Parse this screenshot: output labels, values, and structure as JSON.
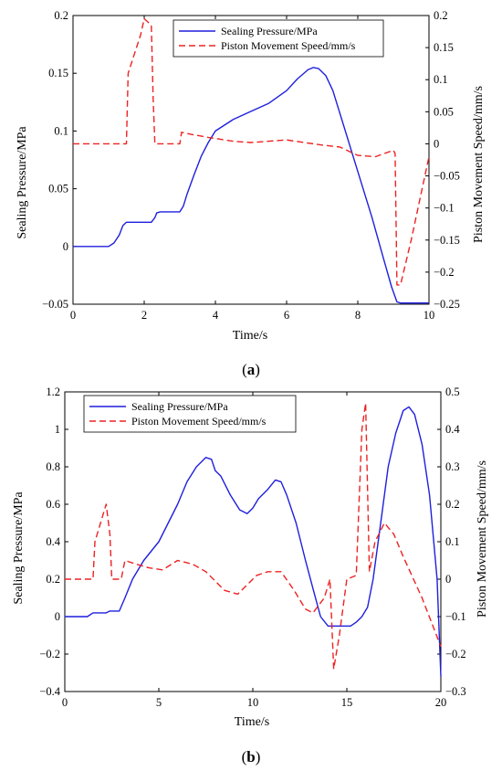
{
  "chart_data": [
    {
      "type": "line",
      "panel_label_letter": "a",
      "xlabel": "Time/s",
      "ylabel_left": "Sealing Pressure/MPa",
      "ylabel_right": "Piston Movement Speed/mm/s",
      "xlim": [
        0,
        10
      ],
      "ylim_left": [
        -0.05,
        0.2
      ],
      "ylim_right": [
        -0.25,
        0.2
      ],
      "xticks": [
        "0",
        "2",
        "4",
        "6",
        "8",
        "10"
      ],
      "yticks_left": [
        "-0.05",
        "0",
        "0.05",
        "0.1",
        "0.15",
        "0.2"
      ],
      "yticks_right": [
        "-0.25",
        "-0.2",
        "-0.15",
        "-0.1",
        "-0.05",
        "0",
        "0.05",
        "0.1",
        "0.15",
        "0.2"
      ],
      "grid": false,
      "legend_position": "top-center",
      "series": [
        {
          "name": "Sealing Pressure/MPa",
          "axis": "left",
          "color": "#1f1fdd",
          "style": "solid",
          "points": [
            [
              0,
              0
            ],
            [
              1.0,
              0
            ],
            [
              1.15,
              0.003
            ],
            [
              1.3,
              0.01
            ],
            [
              1.4,
              0.018
            ],
            [
              1.5,
              0.021
            ],
            [
              2.2,
              0.021
            ],
            [
              2.3,
              0.025
            ],
            [
              2.35,
              0.029
            ],
            [
              2.45,
              0.03
            ],
            [
              3.0,
              0.03
            ],
            [
              3.1,
              0.035
            ],
            [
              3.2,
              0.045
            ],
            [
              3.4,
              0.062
            ],
            [
              3.6,
              0.078
            ],
            [
              3.8,
              0.09
            ],
            [
              4.0,
              0.1
            ],
            [
              4.5,
              0.11
            ],
            [
              5.0,
              0.117
            ],
            [
              5.5,
              0.124
            ],
            [
              6.0,
              0.135
            ],
            [
              6.3,
              0.145
            ],
            [
              6.6,
              0.153
            ],
            [
              6.75,
              0.155
            ],
            [
              6.9,
              0.154
            ],
            [
              7.1,
              0.148
            ],
            [
              7.3,
              0.135
            ],
            [
              7.5,
              0.115
            ],
            [
              7.8,
              0.085
            ],
            [
              8.1,
              0.055
            ],
            [
              8.4,
              0.025
            ],
            [
              8.7,
              -0.008
            ],
            [
              8.95,
              -0.035
            ],
            [
              9.1,
              -0.048
            ],
            [
              9.2,
              -0.049
            ],
            [
              10,
              -0.049
            ]
          ]
        },
        {
          "name": "Piston Movement Speed/mm/s",
          "axis": "right",
          "color": "#ee2222",
          "style": "dashed",
          "points": [
            [
              0,
              0
            ],
            [
              1.5,
              0
            ],
            [
              1.55,
              0.11
            ],
            [
              1.9,
              0.17
            ],
            [
              2.0,
              0.195
            ],
            [
              2.2,
              0.185
            ],
            [
              2.25,
              0.07
            ],
            [
              2.3,
              0
            ],
            [
              3.0,
              0
            ],
            [
              3.05,
              0.018
            ],
            [
              3.3,
              0.015
            ],
            [
              3.8,
              0.01
            ],
            [
              4.5,
              0.004
            ],
            [
              5.0,
              0.002
            ],
            [
              5.5,
              0.004
            ],
            [
              6.0,
              0.006
            ],
            [
              6.5,
              0.002
            ],
            [
              7.0,
              -0.002
            ],
            [
              7.5,
              -0.005
            ],
            [
              8.0,
              -0.018
            ],
            [
              8.5,
              -0.02
            ],
            [
              9.0,
              -0.01
            ],
            [
              9.05,
              -0.015
            ],
            [
              9.1,
              -0.22
            ],
            [
              9.2,
              -0.22
            ],
            [
              9.5,
              -0.15
            ],
            [
              10,
              -0.02
            ]
          ]
        }
      ]
    },
    {
      "type": "line",
      "panel_label_letter": "b",
      "xlabel": "Time/s",
      "ylabel_left": "Sealing Pressure/MPa",
      "ylabel_right": "Piston Movement Speed/mm/s",
      "xlim": [
        0,
        20
      ],
      "ylim_left": [
        -0.4,
        1.2
      ],
      "ylim_right": [
        -0.3,
        0.5
      ],
      "xticks": [
        "0",
        "5",
        "10",
        "15",
        "20"
      ],
      "yticks_left": [
        "-0.4",
        "-0.2",
        "0",
        "0.2",
        "0.4",
        "0.6",
        "0.8",
        "1",
        "1.2"
      ],
      "yticks_right": [
        "-0.3",
        "-0.2",
        "-0.1",
        "0",
        "0.1",
        "0.2",
        "0.3",
        "0.4",
        "0.5"
      ],
      "grid": false,
      "legend_position": "top-left",
      "series": [
        {
          "name": "Sealing Pressure/MPa",
          "axis": "left",
          "color": "#1f1fdd",
          "style": "solid",
          "points": [
            [
              0,
              0
            ],
            [
              1.2,
              0
            ],
            [
              1.5,
              0.02
            ],
            [
              2.2,
              0.02
            ],
            [
              2.4,
              0.03
            ],
            [
              2.9,
              0.03
            ],
            [
              3.2,
              0.1
            ],
            [
              3.6,
              0.2
            ],
            [
              4.2,
              0.3
            ],
            [
              5.0,
              0.4
            ],
            [
              5.5,
              0.5
            ],
            [
              6.0,
              0.6
            ],
            [
              6.5,
              0.72
            ],
            [
              7.0,
              0.8
            ],
            [
              7.5,
              0.85
            ],
            [
              7.8,
              0.84
            ],
            [
              8.0,
              0.78
            ],
            [
              8.3,
              0.75
            ],
            [
              8.8,
              0.65
            ],
            [
              9.3,
              0.57
            ],
            [
              9.7,
              0.55
            ],
            [
              10.0,
              0.58
            ],
            [
              10.3,
              0.63
            ],
            [
              10.8,
              0.68
            ],
            [
              11.2,
              0.73
            ],
            [
              11.5,
              0.72
            ],
            [
              11.8,
              0.65
            ],
            [
              12.3,
              0.5
            ],
            [
              12.8,
              0.3
            ],
            [
              13.2,
              0.15
            ],
            [
              13.6,
              0
            ],
            [
              14.0,
              -0.05
            ],
            [
              15.2,
              -0.05
            ],
            [
              15.5,
              -0.03
            ],
            [
              15.8,
              0
            ],
            [
              16.1,
              0.05
            ],
            [
              16.4,
              0.2
            ],
            [
              16.8,
              0.5
            ],
            [
              17.2,
              0.8
            ],
            [
              17.6,
              0.98
            ],
            [
              18.0,
              1.1
            ],
            [
              18.3,
              1.12
            ],
            [
              18.6,
              1.08
            ],
            [
              19.0,
              0.92
            ],
            [
              19.4,
              0.65
            ],
            [
              19.8,
              0.2
            ],
            [
              20,
              -0.32
            ]
          ]
        },
        {
          "name": "Piston Movement Speed/mm/s",
          "axis": "right",
          "color": "#ee2222",
          "style": "dashed",
          "points": [
            [
              0,
              0
            ],
            [
              1.5,
              0
            ],
            [
              1.6,
              0.1
            ],
            [
              2.2,
              0.2
            ],
            [
              2.4,
              0.12
            ],
            [
              2.5,
              0
            ],
            [
              3.0,
              0
            ],
            [
              3.2,
              0.05
            ],
            [
              3.8,
              0.04
            ],
            [
              4.5,
              0.03
            ],
            [
              5.2,
              0.025
            ],
            [
              6.0,
              0.05
            ],
            [
              6.8,
              0.04
            ],
            [
              7.5,
              0.02
            ],
            [
              8.5,
              -0.03
            ],
            [
              9.2,
              -0.04
            ],
            [
              10.2,
              0.01
            ],
            [
              10.8,
              0.02
            ],
            [
              11.5,
              0.02
            ],
            [
              12.2,
              -0.03
            ],
            [
              12.8,
              -0.08
            ],
            [
              13.2,
              -0.09
            ],
            [
              13.8,
              -0.05
            ],
            [
              14.1,
              0
            ],
            [
              14.3,
              -0.24
            ],
            [
              14.6,
              -0.15
            ],
            [
              15.0,
              0
            ],
            [
              15.5,
              0.01
            ],
            [
              15.8,
              0.4
            ],
            [
              16.0,
              0.47
            ],
            [
              16.2,
              0.02
            ],
            [
              16.5,
              0.1
            ],
            [
              17.0,
              0.15
            ],
            [
              17.5,
              0.12
            ],
            [
              18.0,
              0.06
            ],
            [
              19.0,
              -0.05
            ],
            [
              20,
              -0.18
            ]
          ]
        }
      ]
    }
  ]
}
